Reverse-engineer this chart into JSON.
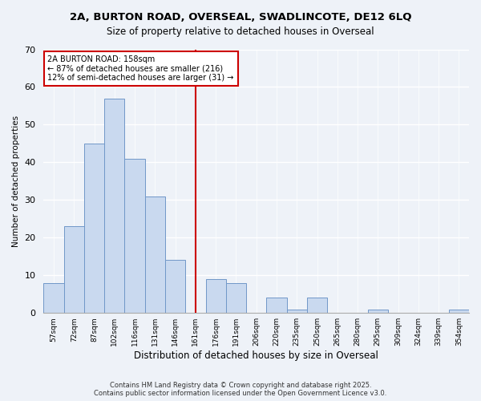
{
  "title1": "2A, BURTON ROAD, OVERSEAL, SWADLINCOTE, DE12 6LQ",
  "title2": "Size of property relative to detached houses in Overseal",
  "xlabel": "Distribution of detached houses by size in Overseal",
  "ylabel": "Number of detached properties",
  "bar_color": "#c9d9ef",
  "bar_edge_color": "#7097c8",
  "categories": [
    "57sqm",
    "72sqm",
    "87sqm",
    "102sqm",
    "116sqm",
    "131sqm",
    "146sqm",
    "161sqm",
    "176sqm",
    "191sqm",
    "206sqm",
    "220sqm",
    "235sqm",
    "250sqm",
    "265sqm",
    "280sqm",
    "295sqm",
    "309sqm",
    "324sqm",
    "339sqm",
    "354sqm"
  ],
  "values": [
    8,
    23,
    45,
    57,
    41,
    31,
    14,
    0,
    9,
    8,
    0,
    4,
    1,
    4,
    0,
    0,
    1,
    0,
    0,
    0,
    1
  ],
  "ylim": [
    0,
    70
  ],
  "yticks": [
    0,
    10,
    20,
    30,
    40,
    50,
    60,
    70
  ],
  "vline_x": 7,
  "vline_color": "#cc0000",
  "annotation_title": "2A BURTON ROAD: 158sqm",
  "annotation_line1": "← 87% of detached houses are smaller (216)",
  "annotation_line2": "12% of semi-detached houses are larger (31) →",
  "annotation_box_color": "#ffffff",
  "annotation_box_edge": "#cc0000",
  "bg_color": "#eef2f8",
  "footer1": "Contains HM Land Registry data © Crown copyright and database right 2025.",
  "footer2": "Contains public sector information licensed under the Open Government Licence v3.0."
}
